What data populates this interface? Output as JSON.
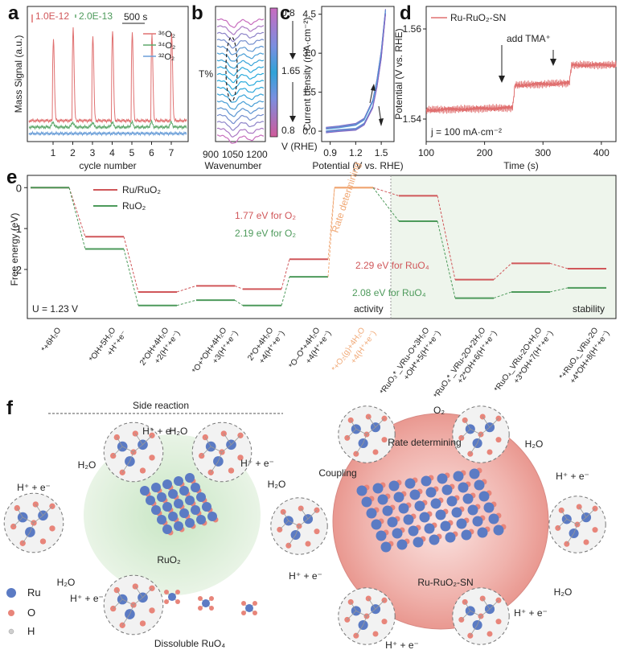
{
  "panel_letters": [
    "a",
    "b",
    "c",
    "d",
    "e",
    "f"
  ],
  "colors": {
    "red": "#e07070",
    "green": "#5fa86c",
    "blue": "#6a9ed8",
    "orange": "#f0a875",
    "ru": "#5b7bc4",
    "o": "#e8857a"
  },
  "chart_data": [
    {
      "panel": "a",
      "type": "line",
      "xlabel": "cycle number",
      "ylabel": "Mass Signal (a.u.)",
      "xticks": [
        "1",
        "2",
        "3",
        "4",
        "5",
        "6",
        "7"
      ],
      "scale_bars": [
        "1.0E-12",
        "2.0E-13",
        "500 s"
      ],
      "series": [
        {
          "name": "³⁶O₂",
          "values": [
            0.12,
            0.12,
            0.12,
            0.12,
            0.12,
            0.12,
            0.12
          ],
          "peaks": [
            0.6,
            0.68,
            0.62,
            0.66,
            0.64,
            0.62,
            0.64
          ]
        },
        {
          "name": "³⁴O₂",
          "values": [
            0.08,
            0.08,
            0.08,
            0.08,
            0.08,
            0.08,
            0.08
          ]
        },
        {
          "name": "³²O₂",
          "values": [
            0.04,
            0.04,
            0.04,
            0.04,
            0.04,
            0.04,
            0.04
          ]
        }
      ]
    },
    {
      "panel": "b",
      "type": "line",
      "xlabel": "Wavenumber",
      "ylabel": "T%",
      "xticks": [
        "900",
        "1050",
        "1200"
      ],
      "colorbar": {
        "label": "V (RHE)",
        "ticks": [
          "0.8",
          "1.65",
          "0.8"
        ]
      }
    },
    {
      "panel": "c",
      "type": "line",
      "xlabel": "Potential (V vs. RHE)",
      "ylabel": "Current density (mA·cm⁻²)",
      "xticks": [
        "0.9",
        "1.2",
        "1.5"
      ],
      "yticks": [
        "0.0",
        "1.5",
        "3.0",
        "4.5"
      ],
      "xlim": [
        0.8,
        1.65
      ],
      "ylim": [
        -0.4,
        4.8
      ],
      "series": [
        {
          "x": [
            0.85,
            1.0,
            1.2,
            1.3,
            1.4,
            1.45,
            1.5,
            1.55
          ],
          "y": [
            0.15,
            0.2,
            0.3,
            0.5,
            1.2,
            2.0,
            3.1,
            4.7
          ]
        },
        {
          "x": [
            0.85,
            1.0,
            1.2,
            1.3,
            1.4,
            1.45,
            1.5,
            1.55
          ],
          "y": [
            -0.05,
            0.0,
            0.05,
            0.25,
            0.9,
            1.7,
            2.8,
            4.5
          ]
        }
      ]
    },
    {
      "panel": "d",
      "type": "line",
      "xlabel": "Time (s)",
      "ylabel": "Potential (V vs. RHE)",
      "xticks": [
        "100",
        "200",
        "300",
        "400"
      ],
      "yticks": [
        "1.54",
        "1.56"
      ],
      "xlim": [
        100,
        425
      ],
      "ylim": [
        1.535,
        1.565
      ],
      "legend": "Ru-RuO₂-SN",
      "annotation": "add TMA⁺",
      "note": "j = 100 mA·cm⁻²",
      "series": [
        {
          "name": "Ru-RuO₂-SN",
          "x": [
            100,
            248,
            252,
            345,
            349,
            425
          ],
          "y": [
            1.542,
            1.5425,
            1.5475,
            1.548,
            1.552,
            1.552
          ]
        }
      ]
    },
    {
      "panel": "e",
      "type": "line",
      "ylabel": "Free energy (eV)",
      "yticks": [
        "0",
        "-1",
        "-2"
      ],
      "ylim": [
        -3.2,
        0.3
      ],
      "categories": [
        "*+6H₂O",
        "*OH+5H₂O +H⁺+e⁻",
        "2*OH+4H₂O +2(H⁺+e⁻)",
        "*O+*OH+4H₂O +3(H⁺+e⁻)",
        "2*O+4H₂O +4(H⁺+e⁻)",
        "*O–O*+4H₂O +4(H⁺+e⁻)",
        "*+O₂(g)+4H₂O +4(H⁺+e⁻)",
        "*RuO₃*_VRu-O+3H₂O +OH*+5(H⁺+e⁻)",
        "*RuO₄*_VRu-2O+2H₂O +2*OH+6(H⁺+e⁻)",
        "*RuO₄_VRu-2O+H₂O +3*OH+7(H⁺+e⁻)",
        "*+RuO₄_VRu-2O +4*OH+8(H⁺+e⁻)"
      ],
      "legend": [
        "Ru/RuO₂",
        "RuO₂"
      ],
      "labels": [
        "1.77 eV for O₂",
        "2.19 eV for O₂",
        "2.29 eV for RuO₄",
        "2.08 eV for RuO₄",
        "Rate determining",
        "U = 1.23 V",
        "activity",
        "stability"
      ],
      "series": [
        {
          "name": "Ru/RuO₂",
          "values": [
            0,
            -1.2,
            -2.55,
            -2.4,
            -2.48,
            -1.75,
            0,
            -0.2,
            -2.25,
            -1.85,
            -1.98
          ]
        },
        {
          "name": "RuO₂",
          "values": [
            0,
            -1.5,
            -2.88,
            -2.75,
            -2.88,
            -2.18,
            0,
            -0.82,
            -2.7,
            -2.55,
            -2.45
          ]
        }
      ]
    }
  ],
  "panel_f": {
    "side_reaction": "Side reaction",
    "left_labels": [
      "H⁺ + e⁻",
      "H₂O",
      "H₂O",
      "H⁺ + e⁻",
      "H₂O",
      "H⁺ + e⁻",
      "H₂O",
      "H⁺ + e⁻",
      "RuO₂",
      "Dissoluble RuO₄"
    ],
    "right_labels": [
      "O₂",
      "Rate determining",
      "Coupling",
      "H₂O",
      "H⁺ + e⁻",
      "H⁺ + e⁻",
      "H₂O",
      "H⁺ + e⁻",
      "H⁺ + e⁻",
      "Ru-RuO₂-SN"
    ],
    "legend": [
      "Ru",
      "O",
      "H"
    ]
  }
}
